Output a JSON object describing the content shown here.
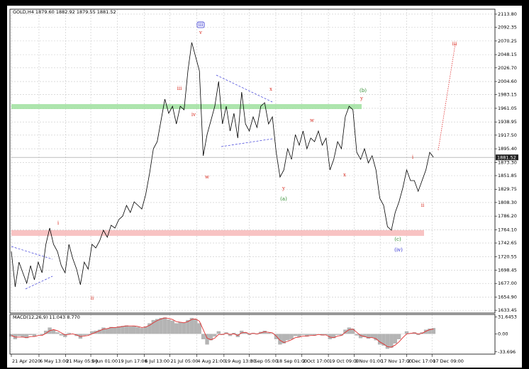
{
  "chart_data": [
    {
      "type": "line",
      "title": "GOLD,H4 1879.60 1882.92 1879.55 1881.52",
      "xlim": [
        0,
        126
      ],
      "ylim": [
        1629,
        2121.8
      ],
      "grid": true,
      "yticks": [
        {
          "value": 2113.8,
          "label": "2113.80"
        },
        2092.35,
        2070.25,
        2048.15,
        {
          "value": 2026.7,
          "label": "2026.70"
        },
        {
          "value": 2004.6,
          "label": "2004.60"
        },
        1983.15,
        1961.05,
        1938.95,
        {
          "value": 1917.5,
          "label": "1917.50"
        },
        {
          "value": 1895.4,
          "label": "1895.40"
        },
        {
          "value": 1873.3,
          "label": "1873.30"
        },
        1851.85,
        1829.75,
        {
          "value": 1808.3,
          "label": "1808.30"
        },
        {
          "value": 1786.2,
          "label": "1786.20"
        },
        {
          "value": 1764.1,
          "label": "1764.10"
        },
        1742.65,
        1720.55,
        1698.45,
        {
          "value": 1677,
          "label": "1677.00"
        },
        {
          "value": 1654.9,
          "label": "1654.90"
        },
        1633.45
      ],
      "xticks": [
        {
          "value": 0,
          "label": "21 Apr 2020"
        },
        {
          "value": 7.2,
          "label": "6 May 13:00"
        },
        {
          "value": 14.1,
          "label": "21 May 05:00"
        },
        {
          "value": 20.7,
          "label": "5 Jun 01:00"
        },
        {
          "value": 27.6,
          "label": "19 Jun 17:00"
        },
        {
          "value": 34.6,
          "label": "6 Jul 13:00"
        },
        {
          "value": 41.3,
          "label": "21 Jul 05:00"
        },
        {
          "value": 48.3,
          "label": "4 Aug 21:00"
        },
        {
          "value": 55.4,
          "label": "19 Aug 13:00"
        },
        {
          "value": 62,
          "label": "3 Sep 05:00"
        },
        {
          "value": 68.9,
          "label": "18 Sep 01:00"
        },
        {
          "value": 75.7,
          "label": "2 Oct 17:00"
        },
        {
          "value": 82.6,
          "label": "19 Oct 09:00"
        },
        {
          "value": 89.3,
          "label": "3 Nov 01:00"
        },
        {
          "value": 96.1,
          "label": "17 Nov 17:00"
        },
        {
          "value": 103,
          "label": "2 Dec 17:00"
        },
        {
          "value": 109.6,
          "label": "17 Dec 09:00"
        }
      ],
      "last_price": 1881.52,
      "series": [
        {
          "color": "#000000",
          "values": [
            1728.9,
            1671.4,
            1711.6,
            1694.4,
            1677.2,
            1705.9,
            1682.9,
            1711.6,
            1694.4,
            1740.4,
            1766.8,
            1740.4,
            1728.9,
            1705.9,
            1694.4,
            1740.4,
            1717.4,
            1700.2,
            1674.9,
            1711.6,
            1700.2,
            1740.4,
            1734.6,
            1746.1,
            1763.4,
            1751.9,
            1771.4,
            1766.8,
            1780.6,
            1786.3,
            1803.6,
            1792.1,
            1809.3,
            1803.6,
            1797.8,
            1820.8,
            1855.3,
            1895.5,
            1907.0,
            1941.4,
            1975.9,
            1952.9,
            1964.4,
            1935.7,
            1964.4,
            1958.7,
            2021.9,
            2067.8,
            2044.9,
            2021.9,
            1884.0,
            1918.5,
            1941.4,
            1964.4,
            2004.6,
            1935.7,
            1964.4,
            1924.2,
            1952.9,
            1912.7,
            1987.4,
            1935.7,
            1924.2,
            1947.2,
            1930.0,
            1964.4,
            1970.2,
            1935.7,
            1947.2,
            1889.7,
            1849.5,
            1861.0,
            1895.5,
            1878.3,
            1918.5,
            1901.2,
            1924.2,
            1895.5,
            1912.7,
            1907.0,
            1924.2,
            1901.2,
            1912.7,
            1861.0,
            1878.3,
            1907.0,
            1895.5,
            1947.2,
            1964.4,
            1958.7,
            1889.7,
            1878.3,
            1895.5,
            1872.5,
            1884.0,
            1861.0,
            1815.1,
            1803.6,
            1769.1,
            1763.4,
            1792.1,
            1809.3,
            1832.3,
            1861.0,
            1843.8,
            1843.8,
            1826.5,
            1843.8,
            1861.0,
            1889.7,
            1881.5
          ]
        }
      ],
      "annotations": [
        {
          "text": "iii",
          "color": "#2b2bd0",
          "boxed": true
        },
        {
          "text": "v",
          "color": "#d93025"
        },
        {
          "text": "iii",
          "color": "#d93025"
        },
        {
          "text": "iv",
          "color": "#d93025"
        },
        {
          "text": "w",
          "color": "#d93025"
        },
        {
          "text": "x",
          "color": "#d93025"
        },
        {
          "text": "y",
          "color": "#d93025"
        },
        {
          "text": "(a)",
          "color": "#2e8b2e"
        },
        {
          "text": "w",
          "color": "#d93025"
        },
        {
          "text": "x",
          "color": "#d93025"
        },
        {
          "text": "y",
          "color": "#d93025"
        },
        {
          "text": "(b)",
          "color": "#2e8b2e"
        },
        {
          "text": "i",
          "color": "#d93025"
        },
        {
          "text": "ii",
          "color": "#d93025"
        },
        {
          "text": "(c)",
          "color": "#2e8b2e"
        },
        {
          "text": "(iv)",
          "color": "#2b2bd0"
        },
        {
          "text": "iii",
          "color": "#d93025"
        },
        {
          "text": "i",
          "color": "#d93025"
        },
        {
          "text": "ii",
          "color": "#d93025"
        }
      ]
    },
    {
      "type": "macd",
      "title": "MACD(12,26,9) 11.043 8.770",
      "xlim": [
        0,
        126
      ],
      "ylim": [
        -38,
        36.5
      ],
      "yticks": [
        {
          "value": 31.6453,
          "label": "31.6453"
        },
        {
          "value": 0,
          "label": "0.00"
        },
        -33.696
      ],
      "series": [
        {
          "type": "bar",
          "color": "#b4b4b4",
          "values": [
            -5,
            -10,
            -4,
            -6,
            -8,
            -2,
            -5,
            0,
            -2,
            6,
            12,
            8,
            3,
            -3,
            -6,
            2,
            0,
            -4,
            -9,
            -3,
            -2,
            5,
            6,
            8,
            12,
            10,
            13,
            12,
            14,
            15,
            16,
            14,
            15,
            13,
            11,
            14,
            20,
            26,
            28,
            30,
            31,
            27,
            25,
            20,
            22,
            21,
            26,
            30,
            28,
            20,
            -10,
            -20,
            -12,
            -5,
            5,
            -2,
            3,
            -4,
            2,
            -6,
            6,
            3,
            -2,
            2,
            -1,
            4,
            6,
            2,
            1,
            -10,
            -20,
            -18,
            -12,
            -10,
            -4,
            -6,
            -2,
            -5,
            -2,
            -3,
            0,
            -3,
            -2,
            -10,
            -8,
            -2,
            -3,
            8,
            12,
            10,
            -3,
            -8,
            -6,
            -9,
            -7,
            -12,
            -20,
            -22,
            -28,
            -26,
            -18,
            -10,
            0,
            5,
            0,
            3,
            -2,
            3,
            8,
            10,
            11
          ]
        },
        {
          "type": "line",
          "color": "#e03030",
          "values": [
            -3,
            -6,
            -6,
            -6,
            -7,
            -5,
            -5,
            -3,
            -3,
            1,
            6,
            8,
            6,
            2,
            -2,
            -1,
            0,
            -2,
            -5,
            -4,
            -3,
            0,
            3,
            6,
            9,
            10,
            12,
            12,
            13,
            14,
            15,
            15,
            15,
            14,
            12,
            13,
            16,
            21,
            25,
            28,
            30,
            29,
            27,
            23,
            22,
            21,
            23,
            27,
            28,
            24,
            8,
            -8,
            -11,
            -8,
            -1,
            -1,
            1,
            -1,
            0,
            -3,
            2,
            3,
            0,
            1,
            0,
            2,
            4,
            3,
            2,
            -4,
            -12,
            -16,
            -14,
            -11,
            -7,
            -6,
            -4,
            -4,
            -3,
            -3,
            -1,
            -2,
            -2,
            -6,
            -7,
            -4,
            -3,
            3,
            8,
            9,
            3,
            -3,
            -5,
            -7,
            -7,
            -9,
            -15,
            -19,
            -24,
            -25,
            -21,
            -15,
            -7,
            0,
            1,
            2,
            0,
            1,
            5,
            8,
            9
          ]
        }
      ]
    }
  ]
}
